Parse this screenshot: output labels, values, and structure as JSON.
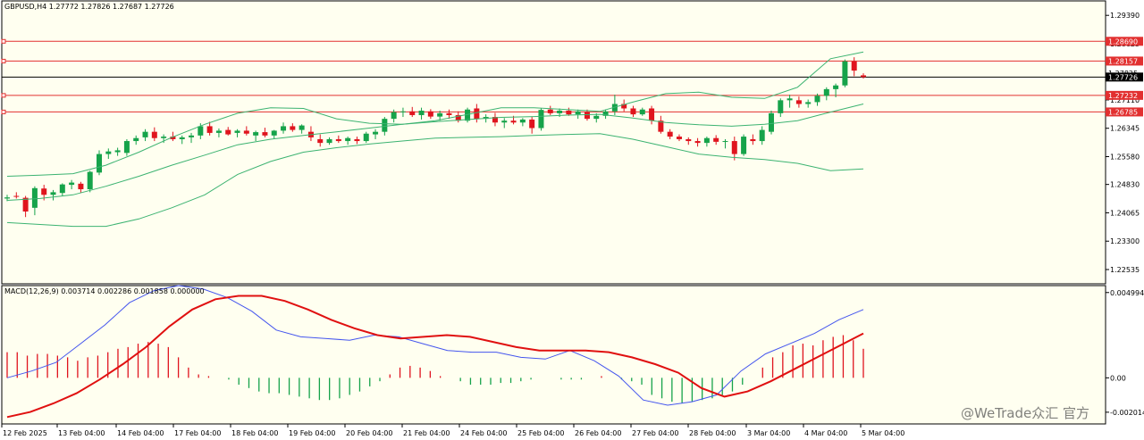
{
  "header": {
    "title": "GBPUSD,H4  1.27772 1.27826 1.27687 1.27726",
    "macd_title": "MACD(12,26,9) 0.003714 0.002286 0.001858 0.000000"
  },
  "watermark": "@WeTrade众汇 官方",
  "colors": {
    "background": "#fffff0",
    "bull": "#16a34a",
    "bear": "#e0141e",
    "band": "#3cb371",
    "hline": "#e23030",
    "macd_line": "#4455ee",
    "signal_line": "#e01010",
    "current_price_line": "#000000"
  },
  "price_axis": {
    "labels": [
      "1.29390",
      "1.28625",
      "1.27110",
      "1.26345",
      "1.25580",
      "1.24830",
      "1.24065",
      "1.23300",
      "1.22535"
    ],
    "min": 1.2215,
    "max": 1.2978
  },
  "price_tags": [
    {
      "value": "1.28690",
      "type": "level"
    },
    {
      "value": "1.28157",
      "type": "level"
    },
    {
      "value": "1.27825",
      "type": "plain"
    },
    {
      "value": "1.27726",
      "type": "current"
    },
    {
      "value": "1.27232",
      "type": "level"
    },
    {
      "value": "1.26785",
      "type": "level"
    }
  ],
  "macd_axis": {
    "labels": [
      "0.004994",
      "0.00",
      "-0.002014"
    ],
    "min": -0.0027,
    "max": 0.0054
  },
  "time_axis": {
    "labels": [
      "12 Feb 2025",
      "13 Feb 04:00",
      "14 Feb 04:00",
      "17 Feb 04:00",
      "18 Feb 04:00",
      "19 Feb 04:00",
      "20 Feb 04:00",
      "21 Feb 04:00",
      "24 Feb 04:00",
      "25 Feb 04:00",
      "26 Feb 04:00",
      "27 Feb 04:00",
      "28 Feb 04:00",
      "3 Mar 04:00",
      "4 Mar 04:00",
      "5 Mar 04:00"
    ]
  },
  "chart_data": {
    "type": "candlestick",
    "title": "GBPUSD,H4",
    "ohlc_header": [
      1.27772,
      1.27826,
      1.27687,
      1.27726
    ],
    "levels": [
      1.2869,
      1.28157,
      1.27232,
      1.26785
    ],
    "current_price": 1.27726,
    "candles": [
      [
        1.2445,
        1.2455,
        1.2438,
        1.2448
      ],
      [
        1.2452,
        1.2462,
        1.2445,
        1.245
      ],
      [
        1.2447,
        1.2452,
        1.2395,
        1.241
      ],
      [
        1.242,
        1.2478,
        1.24,
        1.2473
      ],
      [
        1.2472,
        1.2482,
        1.244,
        1.2455
      ],
      [
        1.2455,
        1.2468,
        1.244,
        1.2462
      ],
      [
        1.246,
        1.2486,
        1.2452,
        1.2483
      ],
      [
        1.2482,
        1.2495,
        1.247,
        1.2488
      ],
      [
        1.2485,
        1.249,
        1.246,
        1.247
      ],
      [
        1.247,
        1.252,
        1.2462,
        1.2517
      ],
      [
        1.2515,
        1.2575,
        1.2508,
        1.2565
      ],
      [
        1.2565,
        1.258,
        1.2552,
        1.2572
      ],
      [
        1.257,
        1.2582,
        1.256,
        1.2575
      ],
      [
        1.2568,
        1.2605,
        1.256,
        1.26
      ],
      [
        1.26,
        1.2615,
        1.259,
        1.2608
      ],
      [
        1.261,
        1.2632,
        1.26,
        1.2625
      ],
      [
        1.2625,
        1.2637,
        1.26,
        1.2608
      ],
      [
        1.2608,
        1.2618,
        1.2595,
        1.2612
      ],
      [
        1.2612,
        1.2625,
        1.26,
        1.2605
      ],
      [
        1.2605,
        1.2615,
        1.2592,
        1.261
      ],
      [
        1.261,
        1.2622,
        1.2595,
        1.2615
      ],
      [
        1.2615,
        1.2648,
        1.2605,
        1.264
      ],
      [
        1.264,
        1.2652,
        1.2615,
        1.2622
      ],
      [
        1.2622,
        1.2634,
        1.261,
        1.2628
      ],
      [
        1.263,
        1.2638,
        1.2615,
        1.2618
      ],
      [
        1.2622,
        1.2632,
        1.261,
        1.2628
      ],
      [
        1.2628,
        1.264,
        1.2615,
        1.262
      ],
      [
        1.2615,
        1.2628,
        1.26,
        1.2624
      ],
      [
        1.2624,
        1.2636,
        1.261,
        1.2615
      ],
      [
        1.2615,
        1.263,
        1.2605,
        1.2628
      ],
      [
        1.2628,
        1.265,
        1.262,
        1.264
      ],
      [
        1.264,
        1.2648,
        1.2625,
        1.263
      ],
      [
        1.263,
        1.2645,
        1.262,
        1.2642
      ],
      [
        1.2625,
        1.264,
        1.26,
        1.261
      ],
      [
        1.2605,
        1.2618,
        1.2585,
        1.2595
      ],
      [
        1.2595,
        1.261,
        1.259,
        1.2605
      ],
      [
        1.2605,
        1.2615,
        1.2595,
        1.26
      ],
      [
        1.26,
        1.2612,
        1.259,
        1.2608
      ],
      [
        1.2605,
        1.2612,
        1.2592,
        1.26
      ],
      [
        1.26,
        1.2625,
        1.2595,
        1.262
      ],
      [
        1.2618,
        1.2632,
        1.2605,
        1.2625
      ],
      [
        1.2625,
        1.2665,
        1.2615,
        1.266
      ],
      [
        1.266,
        1.2685,
        1.265,
        1.2678
      ],
      [
        1.2678,
        1.269,
        1.2665,
        1.268
      ],
      [
        1.268,
        1.2692,
        1.2665,
        1.267
      ],
      [
        1.267,
        1.269,
        1.2658,
        1.2682
      ],
      [
        1.268,
        1.2686,
        1.266,
        1.2666
      ],
      [
        1.2666,
        1.2682,
        1.2655,
        1.2675
      ],
      [
        1.2675,
        1.2685,
        1.266,
        1.267
      ],
      [
        1.267,
        1.268,
        1.265,
        1.2655
      ],
      [
        1.2655,
        1.269,
        1.265,
        1.2685
      ],
      [
        1.2688,
        1.27,
        1.265,
        1.266
      ],
      [
        1.266,
        1.2672,
        1.265,
        1.2665
      ],
      [
        1.2665,
        1.2676,
        1.264,
        1.265
      ],
      [
        1.265,
        1.2662,
        1.2635,
        1.2655
      ],
      [
        1.2655,
        1.2668,
        1.2645,
        1.265
      ],
      [
        1.265,
        1.2662,
        1.264,
        1.2658
      ],
      [
        1.2658,
        1.2665,
        1.262,
        1.2635
      ],
      [
        1.2635,
        1.2688,
        1.2628,
        1.2684
      ],
      [
        1.2685,
        1.2695,
        1.267,
        1.2675
      ],
      [
        1.2675,
        1.2688,
        1.2665,
        1.2682
      ],
      [
        1.2682,
        1.269,
        1.2668,
        1.2672
      ],
      [
        1.2672,
        1.2685,
        1.266,
        1.268
      ],
      [
        1.2678,
        1.2685,
        1.2655,
        1.266
      ],
      [
        1.266,
        1.2675,
        1.265,
        1.2668
      ],
      [
        1.2668,
        1.2685,
        1.266,
        1.268
      ],
      [
        1.268,
        1.2725,
        1.267,
        1.27
      ],
      [
        1.27,
        1.2712,
        1.268,
        1.2688
      ],
      [
        1.2688,
        1.2695,
        1.2665,
        1.2672
      ],
      [
        1.2672,
        1.269,
        1.2668,
        1.2685
      ],
      [
        1.2688,
        1.2695,
        1.2645,
        1.2655
      ],
      [
        1.2655,
        1.2668,
        1.262,
        1.2625
      ],
      [
        1.2625,
        1.2632,
        1.2605,
        1.2612
      ],
      [
        1.2612,
        1.2618,
        1.26,
        1.2605
      ],
      [
        1.2605,
        1.261,
        1.259,
        1.26
      ],
      [
        1.26,
        1.2608,
        1.2585,
        1.2595
      ],
      [
        1.2595,
        1.2612,
        1.2585,
        1.2608
      ],
      [
        1.2608,
        1.2616,
        1.259,
        1.2598
      ],
      [
        1.2598,
        1.2605,
        1.258,
        1.26
      ],
      [
        1.26,
        1.2612,
        1.2548,
        1.2565
      ],
      [
        1.2565,
        1.2618,
        1.256,
        1.2612
      ],
      [
        1.2605,
        1.2618,
        1.259,
        1.26
      ],
      [
        1.26,
        1.264,
        1.259,
        1.263
      ],
      [
        1.2625,
        1.2682,
        1.2618,
        1.2675
      ],
      [
        1.2675,
        1.2715,
        1.2665,
        1.271
      ],
      [
        1.271,
        1.2725,
        1.269,
        1.2715
      ],
      [
        1.271,
        1.272,
        1.269,
        1.27
      ],
      [
        1.27,
        1.2712,
        1.269,
        1.2705
      ],
      [
        1.2705,
        1.2728,
        1.2695,
        1.2722
      ],
      [
        1.2722,
        1.2745,
        1.271,
        1.274
      ],
      [
        1.274,
        1.2755,
        1.2718,
        1.275
      ],
      [
        1.275,
        1.282,
        1.2745,
        1.2815
      ],
      [
        1.2815,
        1.2826,
        1.2775,
        1.279
      ],
      [
        1.27772,
        1.27826,
        1.27687,
        1.27726
      ]
    ],
    "bollinger_upper": [
      1.2505,
      1.2508,
      1.2512,
      1.2535,
      1.257,
      1.261,
      1.2645,
      1.2675,
      1.269,
      1.2688,
      1.266,
      1.2648,
      1.2645,
      1.2655,
      1.2672,
      1.269,
      1.269,
      1.2685,
      1.268,
      1.2705,
      1.2728,
      1.2732,
      1.2718,
      1.2715,
      1.2745,
      1.2822,
      1.284
    ],
    "bollinger_middle": [
      1.244,
      1.2445,
      1.2455,
      1.2478,
      1.2505,
      1.2535,
      1.2562,
      1.259,
      1.2605,
      1.2615,
      1.2625,
      1.2635,
      1.2645,
      1.2652,
      1.2658,
      1.2664,
      1.2666,
      1.267,
      1.2672,
      1.2662,
      1.265,
      1.2644,
      1.264,
      1.2645,
      1.2655,
      1.2678,
      1.27
    ],
    "bollinger_lower": [
      1.238,
      1.2375,
      1.237,
      1.237,
      1.239,
      1.242,
      1.2455,
      1.251,
      1.2545,
      1.257,
      1.2582,
      1.2592,
      1.26,
      1.2608,
      1.261,
      1.2612,
      1.2615,
      1.2618,
      1.262,
      1.2605,
      1.2585,
      1.2565,
      1.2556,
      1.255,
      1.254,
      1.252,
      1.2525
    ],
    "macd": {
      "macd_line": [
        0.0,
        0.0004,
        0.0009,
        0.002,
        0.0031,
        0.0044,
        0.0051,
        0.0054,
        0.0052,
        0.0047,
        0.0039,
        0.0028,
        0.0024,
        0.0023,
        0.0022,
        0.0025,
        0.0024,
        0.002,
        0.0016,
        0.0015,
        0.0015,
        0.0012,
        0.0011,
        0.0016,
        0.001,
        0.0001,
        -0.0013,
        -0.0016,
        -0.0014,
        -0.001,
        0.0004,
        0.0014,
        0.002,
        0.0026,
        0.0034,
        0.004
      ],
      "signal_line": [
        -0.0023,
        -0.002,
        -0.0015,
        -0.0009,
        -0.0001,
        0.0008,
        0.0018,
        0.003,
        0.004,
        0.0046,
        0.0048,
        0.0048,
        0.0045,
        0.004,
        0.0034,
        0.0029,
        0.0025,
        0.0023,
        0.0024,
        0.0025,
        0.0024,
        0.0021,
        0.0018,
        0.0016,
        0.0016,
        0.0016,
        0.0015,
        0.0012,
        0.0008,
        0.0003,
        -0.0006,
        -0.0011,
        -0.0008,
        -0.0002,
        0.0005,
        0.0012,
        0.0019,
        0.0026
      ],
      "histogram": [
        0.0015,
        0.0015,
        0.0013,
        0.0014,
        0.0014,
        0.0013,
        0.0012,
        0.001,
        0.0012,
        0.0013,
        0.0015,
        0.0017,
        0.0018,
        0.002,
        0.0021,
        0.002,
        0.0018,
        0.0012,
        0.0006,
        0.0002,
        0.0001,
        0.0,
        -0.0001,
        -0.0004,
        -0.0006,
        -0.0008,
        -0.0009,
        -0.0009,
        -0.001,
        -0.0011,
        -0.0012,
        -0.0013,
        -0.0013,
        -0.0012,
        -0.001,
        -0.0008,
        -0.0005,
        -0.0002,
        0.0002,
        0.0006,
        0.0007,
        0.0006,
        0.0004,
        0.0001,
        0.0,
        -0.0002,
        -0.0004,
        -0.0004,
        -0.0004,
        -0.0003,
        -0.0003,
        -0.0002,
        -0.0001,
        0.0,
        0.0,
        -0.0001,
        -0.0001,
        -0.0001,
        0.0,
        0.0001,
        0.0,
        -0.0001,
        -0.0002,
        -0.0004,
        -0.001,
        -0.0012,
        -0.0014,
        -0.0015,
        -0.0014,
        -0.0013,
        -0.0012,
        -0.001,
        -0.0008,
        -0.0004,
        0.0,
        0.0006,
        0.0012,
        0.0015,
        0.0019,
        0.002,
        0.0019,
        0.0022,
        0.0024,
        0.0025,
        0.0022,
        0.0017
      ]
    }
  }
}
